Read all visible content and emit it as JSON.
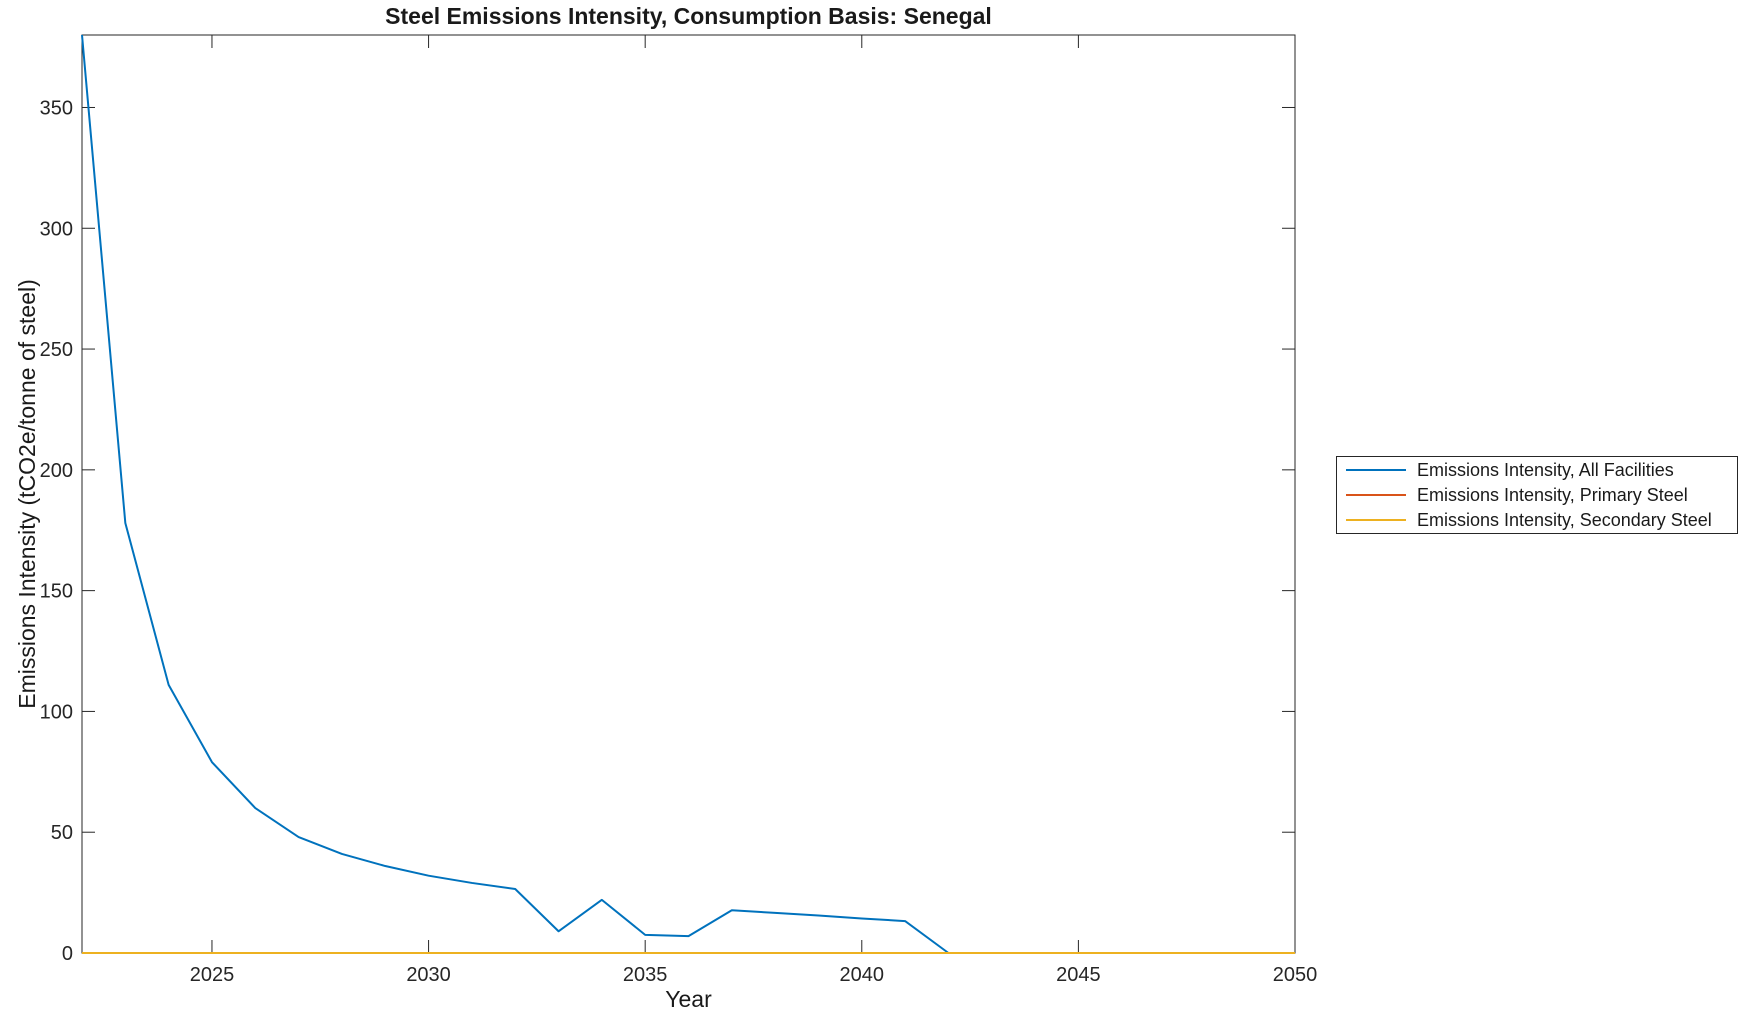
{
  "figure": {
    "title": "Steel Emissions Intensity, Consumption Basis: Senegal",
    "xlabel": "Year",
    "ylabel": "Emissions Intensity (tCO2e/tonne of steel)"
  },
  "colors": {
    "axis": "#262626",
    "text": "#1a1a1a",
    "background": "#ffffff"
  },
  "chart_data": {
    "type": "line",
    "title": "Steel Emissions Intensity, Consumption Basis: Senegal",
    "xlabel": "Year",
    "ylabel": "Emissions Intensity (tCO2e/tonne of steel)",
    "xlim": [
      2022,
      2050
    ],
    "ylim": [
      0,
      380
    ],
    "xticks": [
      2025,
      2030,
      2035,
      2040,
      2045,
      2050
    ],
    "yticks": [
      0,
      50,
      100,
      150,
      200,
      250,
      300,
      350
    ],
    "grid": false,
    "legend_position": "outside-right",
    "x": [
      2022,
      2023,
      2024,
      2025,
      2026,
      2027,
      2028,
      2029,
      2030,
      2031,
      2032,
      2033,
      2034,
      2035,
      2036,
      2037,
      2038,
      2039,
      2040,
      2041,
      2042,
      2043,
      2044,
      2045,
      2046,
      2047,
      2048,
      2049,
      2050
    ],
    "series": [
      {
        "name": "Emissions Intensity, All Facilities",
        "color": "#0072BD",
        "values": [
          380,
          178,
          111,
          79,
          60,
          48,
          41,
          36,
          32,
          29,
          26.5,
          9,
          22,
          7.5,
          7,
          17.7,
          16.6,
          15.5,
          14.3,
          13.2,
          0,
          0,
          0,
          0,
          0,
          0,
          0,
          0,
          0
        ]
      },
      {
        "name": "Emissions Intensity, Primary Steel",
        "color": "#D95319",
        "values": [
          0,
          0,
          0,
          0,
          0,
          0,
          0,
          0,
          0,
          0,
          0,
          0,
          0,
          0,
          0,
          0,
          0,
          0,
          0,
          0,
          0,
          0,
          0,
          0,
          0,
          0,
          0,
          0,
          0
        ]
      },
      {
        "name": "Emissions Intensity, Secondary Steel",
        "color": "#EDB120",
        "values": [
          0,
          0,
          0,
          0,
          0,
          0,
          0,
          0,
          0,
          0,
          0,
          0,
          0,
          0,
          0,
          0,
          0,
          0,
          0,
          0,
          0,
          0,
          0,
          0,
          0,
          0,
          0,
          0,
          0
        ]
      }
    ]
  }
}
